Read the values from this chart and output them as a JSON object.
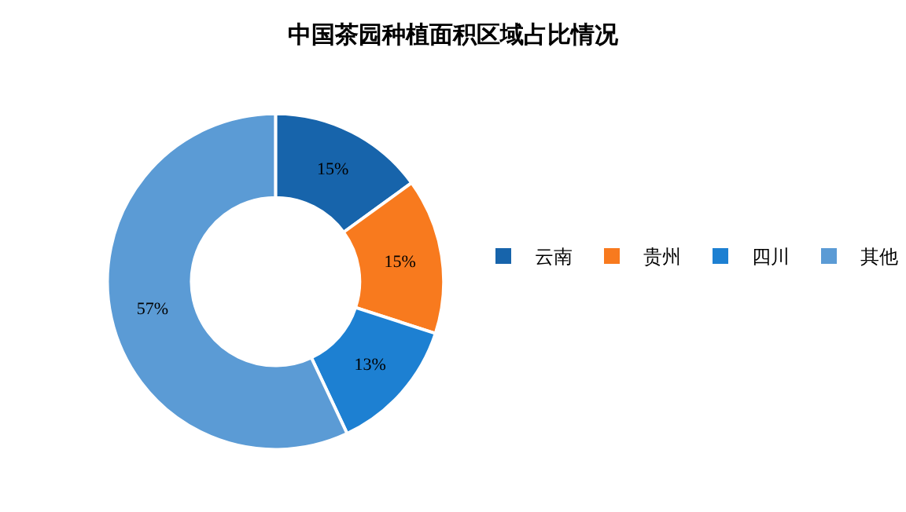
{
  "chart_data": {
    "type": "donut",
    "title": "中国茶园种植面积区域占比情况",
    "categories": [
      "云南",
      "贵州",
      "四川",
      "其他"
    ],
    "values": [
      15,
      15,
      13,
      57
    ],
    "colors": [
      "#1764ab",
      "#f87a1e",
      "#1d80d2",
      "#5b9bd5"
    ],
    "value_labels": [
      "15%",
      "15%",
      "13%",
      "57%"
    ],
    "legend": "right"
  }
}
